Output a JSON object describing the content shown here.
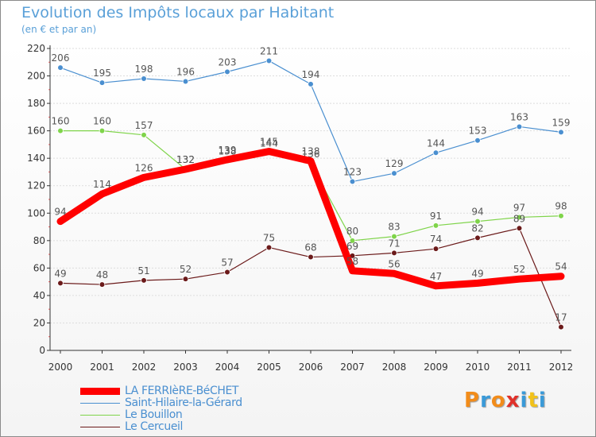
{
  "chart_data": {
    "type": "line",
    "title": "Evolution des Impôts locaux par Habitant",
    "subtitle": "(en € et par an)",
    "x": [
      "2000",
      "2001",
      "2002",
      "2003",
      "2004",
      "2005",
      "2006",
      "2007",
      "2008",
      "2009",
      "2010",
      "2011",
      "2012"
    ],
    "ylim": [
      0,
      220
    ],
    "yticks": [
      0,
      20,
      40,
      60,
      80,
      100,
      120,
      140,
      160,
      180,
      200,
      220
    ],
    "grid": true,
    "legend_position": "bottom-left",
    "series": [
      {
        "name": "Saint-Hilaire-la-Gérard",
        "color": "#4a8fd0",
        "values": [
          206,
          195,
          198,
          196,
          203,
          211,
          194,
          123,
          129,
          144,
          153,
          163,
          159
        ]
      },
      {
        "name": "Le Bouillon",
        "color": "#7fd44a",
        "values": [
          160,
          160,
          157,
          132,
          138,
          144,
          136,
          80,
          83,
          91,
          94,
          97,
          98
        ]
      },
      {
        "name": "Le Cercueil",
        "color": "#6b1a1a",
        "values": [
          49,
          48,
          51,
          52,
          57,
          75,
          68,
          69,
          71,
          74,
          82,
          89,
          17
        ]
      },
      {
        "name": "LA FERRIèRE-BéCHET",
        "color": "#ff0000",
        "values": [
          94,
          114,
          126,
          132,
          139,
          145,
          138,
          58,
          56,
          47,
          49,
          52,
          54
        ]
      }
    ]
  },
  "legend": {
    "items": [
      {
        "label": "LA FERRIèRE-BéCHET",
        "color": "#ff0000"
      },
      {
        "label": "Saint-Hilaire-la-Gérard",
        "color": "#4a8fd0"
      },
      {
        "label": "Le Bouillon",
        "color": "#7fd44a"
      },
      {
        "label": "Le Cercueil",
        "color": "#6b1a1a"
      }
    ]
  },
  "logo": {
    "text": "Proxiti",
    "colors": [
      "#f28c1a",
      "#3a9ad8",
      "#f28c1a",
      "#e0312a",
      "#3a9ad8",
      "#f2c21a",
      "#3a9ad8"
    ]
  }
}
